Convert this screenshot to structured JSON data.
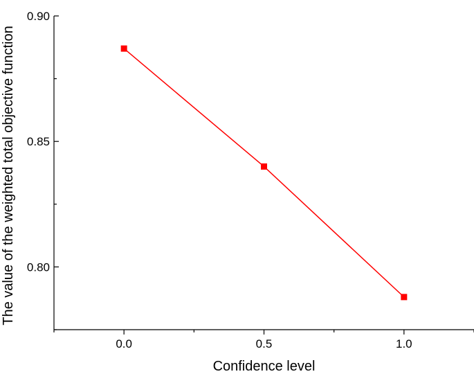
{
  "chart_data": {
    "type": "line",
    "title": "",
    "xlabel": "Confidence level",
    "ylabel": "The value of the weighted total objective function",
    "xlim": [
      -0.25,
      1.25
    ],
    "ylim": [
      0.775,
      0.9
    ],
    "x_ticks": [
      0.0,
      0.5,
      1.0
    ],
    "x_tick_labels": [
      "0.0",
      "0.5",
      "1.0"
    ],
    "y_ticks": [
      0.8,
      0.85,
      0.9
    ],
    "y_tick_labels": [
      "0.80",
      "0.85",
      "0.90"
    ],
    "grid": false,
    "legend": "none",
    "series": [
      {
        "x": [
          0.0,
          0.5,
          1.0
        ],
        "y": [
          0.887,
          0.84,
          0.788
        ],
        "color": "#ff0000",
        "marker": "square"
      }
    ]
  }
}
